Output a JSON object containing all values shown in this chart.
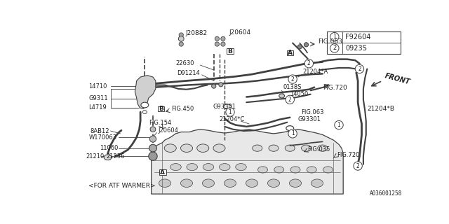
{
  "bg_color": "#f5f5f0",
  "line_color": "#404040",
  "text_color": "#202020",
  "diagram_number": "A036001258",
  "legend": [
    {
      "num": "1",
      "code": "F92604"
    },
    {
      "num": "2",
      "code": "0923S"
    }
  ]
}
